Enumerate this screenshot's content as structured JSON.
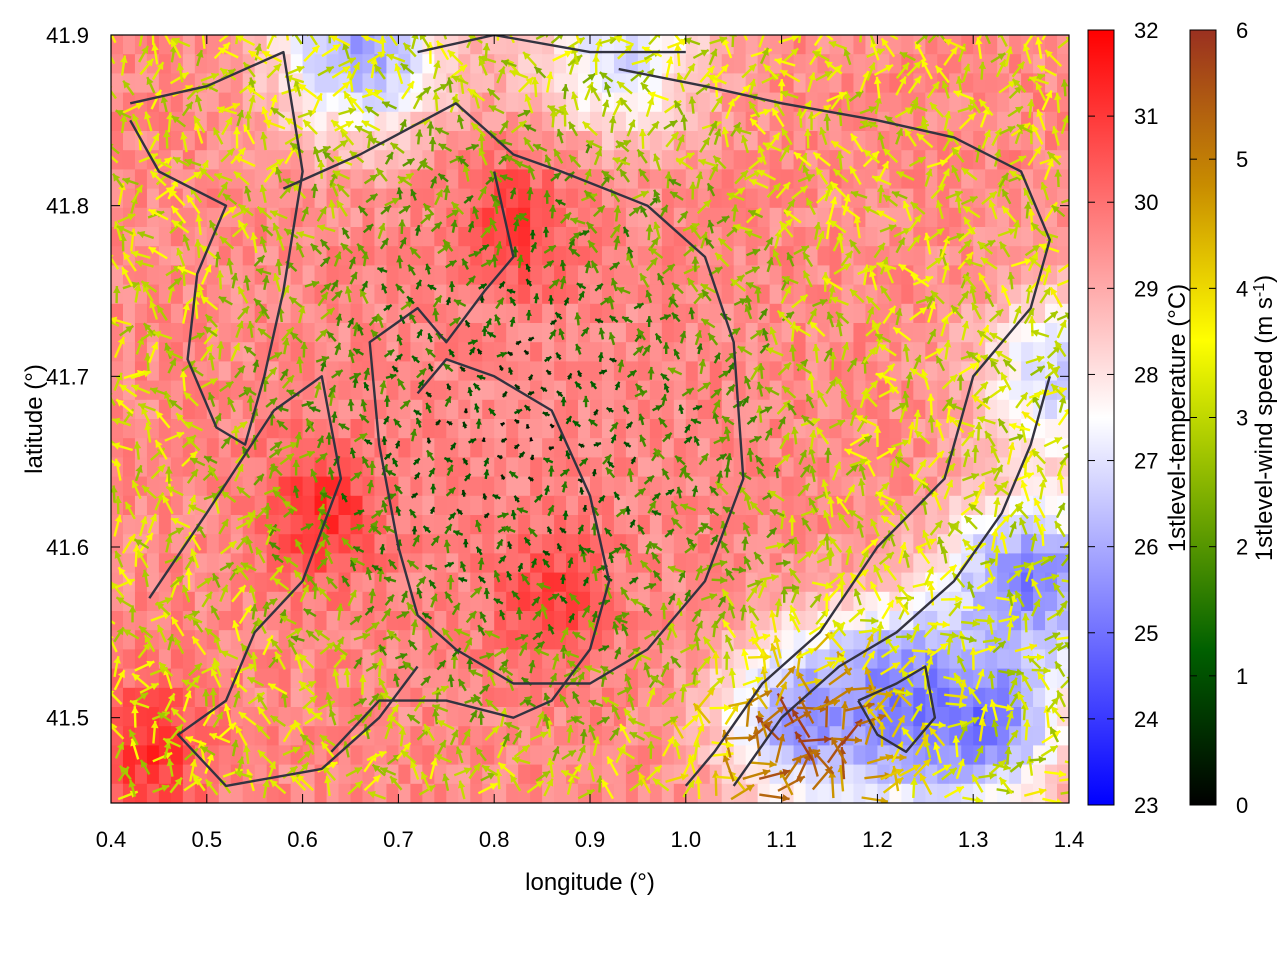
{
  "chart_data": {
    "type": "heatmap",
    "overlay": "wind-vector-field-with-outlines",
    "title": "",
    "xlabel": "longitude (°)",
    "ylabel": "latitude (°)",
    "xlim": [
      0.4,
      1.4
    ],
    "ylim": [
      41.45,
      41.9
    ],
    "x_ticks": [
      "0.4",
      "0.5",
      "0.6",
      "0.7",
      "0.8",
      "0.9",
      "1.0",
      "1.1",
      "1.2",
      "1.3",
      "1.4"
    ],
    "y_ticks": [
      "41.5",
      "41.6",
      "41.7",
      "41.8",
      "41.9"
    ],
    "grid": false,
    "colorbars": [
      {
        "label": "1stlevel-temperature (°C)",
        "range": [
          23,
          32
        ],
        "ticks": [
          "23",
          "24",
          "25",
          "26",
          "27",
          "28",
          "29",
          "30",
          "31",
          "32"
        ],
        "colors": [
          "#0000ff",
          "#ffffff",
          "#ff0000"
        ]
      },
      {
        "label_main": "1stlevel-wind speed (m s",
        "label_sup": "-1",
        "label_end": ")",
        "range": [
          0,
          6
        ],
        "ticks": [
          "0",
          "1",
          "2",
          "3",
          "4",
          "5",
          "6"
        ],
        "colors": [
          "#000000",
          "#006000",
          "#7fb000",
          "#ffff00",
          "#c88c00",
          "#9a3020"
        ]
      }
    ],
    "temperature_field": {
      "base": 29.6,
      "warm_cores": [
        {
          "lon": 0.62,
          "lat": 41.62,
          "value": 31.2
        },
        {
          "lon": 0.82,
          "lat": 41.79,
          "value": 31.0
        },
        {
          "lon": 0.86,
          "lat": 41.57,
          "value": 30.8
        },
        {
          "lon": 0.44,
          "lat": 41.48,
          "value": 31.2
        }
      ],
      "cool_areas": [
        {
          "lon": 1.3,
          "lat": 41.5,
          "value": 24.8
        },
        {
          "lon": 1.22,
          "lat": 41.51,
          "value": 25.0
        },
        {
          "lon": 1.36,
          "lat": 41.58,
          "value": 25.2
        },
        {
          "lon": 1.13,
          "lat": 41.5,
          "value": 25.6
        },
        {
          "lon": 0.66,
          "lat": 41.89,
          "value": 25.8
        },
        {
          "lon": 0.93,
          "lat": 41.89,
          "value": 26.8
        },
        {
          "lon": 1.4,
          "lat": 41.7,
          "value": 26.5
        }
      ]
    },
    "wind_field": {
      "typical_speed": 2.0,
      "fast_zone": {
        "lon": 1.12,
        "lat": 41.48,
        "value": 4.5
      }
    },
    "outlines": [
      {
        "name": "outline-inner-core",
        "points": [
          [
            0.58,
            41.81
          ],
          [
            0.66,
            41.83
          ],
          [
            0.76,
            41.86
          ],
          [
            0.82,
            41.83
          ],
          [
            0.87,
            41.82
          ],
          [
            0.96,
            41.8
          ],
          [
            1.02,
            41.77
          ],
          [
            1.05,
            41.72
          ],
          [
            1.06,
            41.64
          ],
          [
            1.02,
            41.58
          ],
          [
            0.96,
            41.54
          ],
          [
            0.9,
            41.52
          ],
          [
            0.82,
            41.52
          ],
          [
            0.76,
            41.54
          ],
          [
            0.72,
            41.56
          ],
          [
            0.7,
            41.6
          ],
          [
            0.68,
            41.66
          ],
          [
            0.67,
            41.72
          ],
          [
            0.72,
            41.74
          ],
          [
            0.75,
            41.72
          ],
          [
            0.79,
            41.75
          ],
          [
            0.82,
            41.77
          ],
          [
            0.8,
            41.82
          ]
        ]
      },
      {
        "name": "outline-west",
        "points": [
          [
            0.42,
            41.86
          ],
          [
            0.5,
            41.87
          ],
          [
            0.58,
            41.89
          ],
          [
            0.6,
            41.82
          ],
          [
            0.58,
            41.75
          ],
          [
            0.56,
            41.7
          ],
          [
            0.54,
            41.66
          ],
          [
            0.51,
            41.67
          ],
          [
            0.48,
            41.71
          ],
          [
            0.49,
            41.76
          ],
          [
            0.52,
            41.8
          ],
          [
            0.45,
            41.82
          ],
          [
            0.42,
            41.85
          ]
        ]
      },
      {
        "name": "outline-southwest",
        "points": [
          [
            0.44,
            41.57
          ],
          [
            0.5,
            41.62
          ],
          [
            0.57,
            41.68
          ],
          [
            0.62,
            41.7
          ],
          [
            0.64,
            41.64
          ],
          [
            0.6,
            41.58
          ],
          [
            0.55,
            41.55
          ],
          [
            0.52,
            41.51
          ],
          [
            0.47,
            41.49
          ],
          [
            0.52,
            41.46
          ],
          [
            0.62,
            41.47
          ],
          [
            0.68,
            41.5
          ],
          [
            0.72,
            41.53
          ]
        ]
      },
      {
        "name": "outline-center",
        "points": [
          [
            0.63,
            41.48
          ],
          [
            0.68,
            41.51
          ],
          [
            0.75,
            41.51
          ],
          [
            0.82,
            41.5
          ],
          [
            0.86,
            41.51
          ],
          [
            0.9,
            41.54
          ],
          [
            0.92,
            41.58
          ],
          [
            0.9,
            41.63
          ],
          [
            0.86,
            41.68
          ],
          [
            0.8,
            41.7
          ],
          [
            0.75,
            41.71
          ],
          [
            0.72,
            41.69
          ]
        ]
      },
      {
        "name": "outline-east",
        "points": [
          [
            0.93,
            41.88
          ],
          [
            1.02,
            41.87
          ],
          [
            1.1,
            41.86
          ],
          [
            1.2,
            41.85
          ],
          [
            1.28,
            41.84
          ],
          [
            1.35,
            41.82
          ],
          [
            1.38,
            41.78
          ],
          [
            1.36,
            41.74
          ],
          [
            1.3,
            41.7
          ],
          [
            1.27,
            41.64
          ],
          [
            1.2,
            41.6
          ],
          [
            1.14,
            41.55
          ],
          [
            1.08,
            41.52
          ],
          [
            1.03,
            41.48
          ],
          [
            1.0,
            41.46
          ]
        ]
      },
      {
        "name": "outline-southeast",
        "points": [
          [
            1.05,
            41.46
          ],
          [
            1.1,
            41.5
          ],
          [
            1.16,
            41.53
          ],
          [
            1.22,
            41.55
          ],
          [
            1.28,
            41.58
          ],
          [
            1.33,
            41.62
          ],
          [
            1.36,
            41.66
          ],
          [
            1.38,
            41.7
          ]
        ]
      },
      {
        "name": "outline-small-loop",
        "points": [
          [
            1.18,
            41.51
          ],
          [
            1.22,
            41.52
          ],
          [
            1.25,
            41.53
          ],
          [
            1.26,
            41.5
          ],
          [
            1.23,
            41.48
          ],
          [
            1.2,
            41.49
          ],
          [
            1.18,
            41.51
          ]
        ]
      },
      {
        "name": "outline-north",
        "points": [
          [
            0.72,
            41.89
          ],
          [
            0.8,
            41.9
          ],
          [
            0.9,
            41.89
          ],
          [
            1.0,
            41.89
          ]
        ]
      }
    ]
  }
}
